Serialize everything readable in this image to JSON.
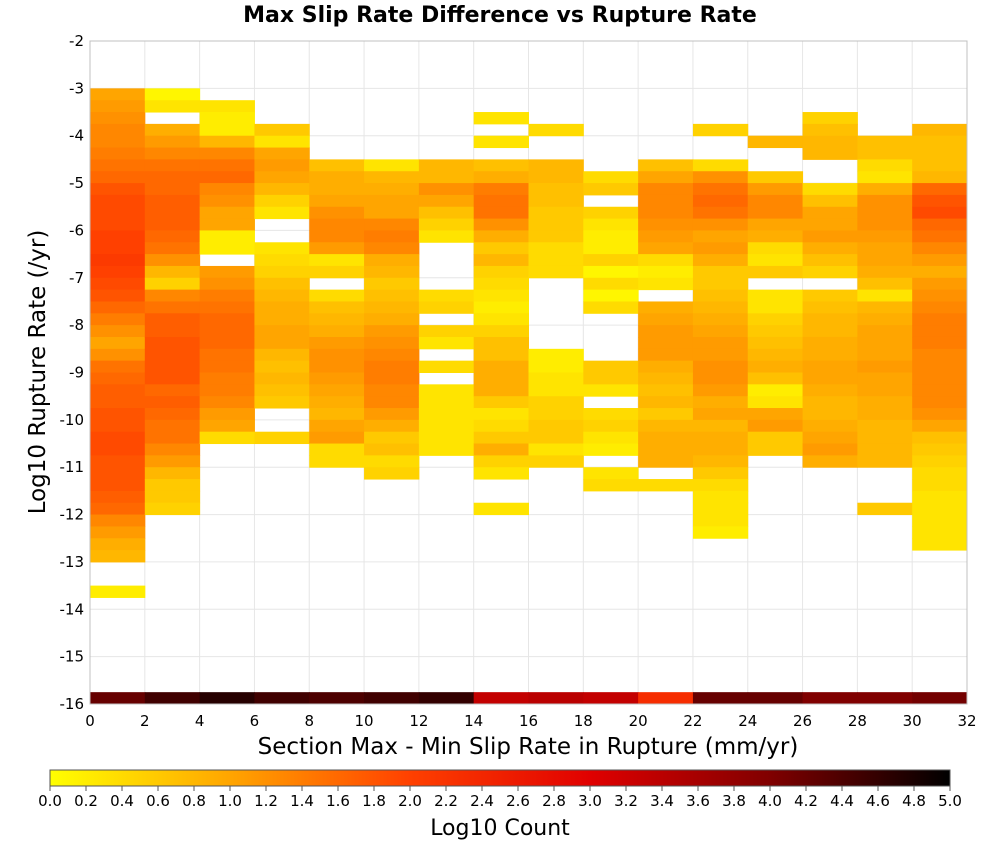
{
  "chart_data": {
    "type": "heatmap",
    "title": "Max Slip Rate Difference vs Rupture Rate",
    "xlabel": "Section Max - Min Slip Rate in Rupture (mm/yr)",
    "ylabel": "Log10 Rupture Rate (/yr)",
    "xlim": [
      0,
      32
    ],
    "ylim": [
      -16,
      -2
    ],
    "x_ticks": [
      0,
      2,
      4,
      6,
      8,
      10,
      12,
      14,
      16,
      18,
      20,
      22,
      24,
      26,
      28,
      30,
      32
    ],
    "y_ticks": [
      -2,
      -3,
      -4,
      -5,
      -6,
      -7,
      -8,
      -9,
      -10,
      -11,
      -12,
      -13,
      -14,
      -15,
      -16
    ],
    "x_bin_width": 2,
    "y_bin_height": 0.25,
    "grid": true,
    "colorbar": {
      "label": "Log10 Count",
      "min": 0.0,
      "max": 5.0,
      "ticks": [
        "0.0",
        "0.2",
        "0.4",
        "0.6",
        "0.8",
        "1.0",
        "1.2",
        "1.4",
        "1.6",
        "1.8",
        "2.0",
        "2.2",
        "2.4",
        "2.6",
        "2.8",
        "3.0",
        "3.2",
        "3.4",
        "3.6",
        "3.8",
        "4.0",
        "4.2",
        "4.4",
        "4.6",
        "4.8",
        "5.0"
      ],
      "stops": [
        "#ffff00",
        "#ffa500",
        "#ff4000",
        "#e00000",
        "#800000",
        "#000000"
      ]
    },
    "columns": [
      {
        "x": 0,
        "start": -3.0,
        "values": [
          1.0,
          1.1,
          1.2,
          1.3,
          1.3,
          1.4,
          1.5,
          1.6,
          1.8,
          1.9,
          1.9,
          1.9,
          2.0,
          2.0,
          2.1,
          2.0,
          1.9,
          1.8,
          1.6,
          1.4,
          1.2,
          1.0,
          1.2,
          1.5,
          1.6,
          1.7,
          1.7,
          1.8,
          1.8,
          1.9,
          1.9,
          1.8,
          1.8,
          1.8,
          1.7,
          1.6,
          1.3,
          1.1,
          0.9,
          0.8,
          null,
          null,
          0.2
        ]
      },
      {
        "x": 2,
        "start": -3.0,
        "values": [
          0.1,
          0.3,
          null,
          0.9,
          1.1,
          1.3,
          1.5,
          1.6,
          1.6,
          1.7,
          1.7,
          1.7,
          1.6,
          1.5,
          1.2,
          0.8,
          0.5,
          1.3,
          1.5,
          1.7,
          1.7,
          1.8,
          1.8,
          1.8,
          1.8,
          1.6,
          1.7,
          1.6,
          1.5,
          1.5,
          1.3,
          1.1,
          0.8,
          0.6,
          0.6,
          0.5
        ]
      },
      {
        "x": 4,
        "start": -3.25,
        "values": [
          0.3,
          0.2,
          0.2,
          0.8,
          1.3,
          1.5,
          1.6,
          1.3,
          1.2,
          1.0,
          1.0,
          0.2,
          0.2,
          null,
          1.1,
          1.2,
          1.4,
          1.5,
          1.6,
          1.6,
          1.6,
          1.5,
          1.5,
          1.4,
          1.4,
          1.3,
          1.1,
          1.0,
          0.4
        ]
      },
      {
        "x": 6,
        "start": -3.75,
        "values": [
          0.6,
          0.3,
          1.0,
          1.1,
          1.0,
          0.8,
          0.5,
          0.3,
          null,
          null,
          0.3,
          0.4,
          0.5,
          0.7,
          0.8,
          0.9,
          0.9,
          1.0,
          1.0,
          0.8,
          0.7,
          0.8,
          0.7,
          0.6,
          null,
          null,
          0.5
        ]
      },
      {
        "x": 8,
        "start": -4.5,
        "values": [
          0.7,
          0.9,
          0.9,
          1.0,
          1.2,
          1.3,
          1.3,
          1.1,
          0.3,
          0.5,
          null,
          0.4,
          0.7,
          0.8,
          0.9,
          1.1,
          1.2,
          1.2,
          1.1,
          1.0,
          0.9,
          0.8,
          1.0,
          1.1,
          0.4,
          0.4
        ]
      },
      {
        "x": 10,
        "start": -4.5,
        "values": [
          0.3,
          0.8,
          0.9,
          1.0,
          1.0,
          1.3,
          1.4,
          1.3,
          0.9,
          0.8,
          0.6,
          0.7,
          0.8,
          0.9,
          1.1,
          1.2,
          1.3,
          1.4,
          1.4,
          1.3,
          1.3,
          1.1,
          0.9,
          0.6,
          0.7,
          0.4,
          0.5
        ]
      },
      {
        "x": 12,
        "start": -4.5,
        "values": [
          0.8,
          0.8,
          1.2,
          1.0,
          0.7,
          0.5,
          0.3,
          null,
          null,
          null,
          null,
          0.4,
          0.5,
          null,
          0.5,
          0.3,
          null,
          0.4,
          null,
          0.3,
          0.3,
          0.3,
          0.3,
          0.3,
          0.3
        ]
      },
      {
        "x": 14,
        "start": -3.5,
        "values": [
          0.3,
          null,
          0.3,
          null,
          0.7,
          0.9,
          1.4,
          1.5,
          1.5,
          1.2,
          0.9,
          0.6,
          0.8,
          0.5,
          0.4,
          0.3,
          0.2,
          0.3,
          0.5,
          0.7,
          0.7,
          0.9,
          0.9,
          0.9,
          0.6,
          0.3,
          0.4,
          0.6,
          0.9,
          0.5,
          0.3,
          null,
          null,
          0.3
        ]
      },
      {
        "x": 16,
        "start": -3.75,
        "values": [
          0.4,
          null,
          null,
          0.8,
          0.8,
          0.7,
          0.7,
          0.6,
          0.6,
          0.6,
          0.4,
          0.4,
          0.4,
          null,
          null,
          null,
          null,
          null,
          null,
          0.2,
          0.2,
          0.3,
          0.3,
          0.5,
          0.5,
          0.6,
          0.6,
          0.3,
          0.5
        ]
      },
      {
        "x": 18,
        "start": -4.75,
        "values": [
          0.4,
          0.6,
          null,
          0.5,
          0.3,
          0.2,
          0.2,
          0.5,
          0.1,
          0.4,
          0.1,
          0.4,
          null,
          null,
          null,
          null,
          0.6,
          0.6,
          0.3,
          null,
          0.4,
          0.5,
          0.3,
          0.2,
          null,
          0.3,
          0.4
        ]
      },
      {
        "x": 20,
        "start": -4.5,
        "values": [
          0.7,
          1.0,
          1.3,
          1.3,
          1.3,
          1.2,
          1.1,
          1.0,
          0.4,
          0.2,
          0.3,
          null,
          0.9,
          1.0,
          1.1,
          1.1,
          1.1,
          0.9,
          0.8,
          0.7,
          0.8,
          0.6,
          0.8,
          0.9,
          0.9,
          0.9,
          null,
          0.4
        ]
      },
      {
        "x": 22,
        "start": -3.75,
        "values": [
          0.5,
          null,
          null,
          0.4,
          1.2,
          1.5,
          1.6,
          1.5,
          1.2,
          1.0,
          1.1,
          0.9,
          0.6,
          0.6,
          0.7,
          0.8,
          0.9,
          1.0,
          1.1,
          1.1,
          1.2,
          1.2,
          1.1,
          0.9,
          1.0,
          0.8,
          0.9,
          0.9,
          0.8,
          0.6,
          0.4,
          0.3,
          0.3,
          0.3,
          0.2
        ]
      },
      {
        "x": 24,
        "start": -4.0,
        "values": [
          0.8,
          null,
          null,
          0.6,
          1.1,
          1.3,
          1.3,
          1.0,
          0.9,
          0.4,
          0.3,
          0.6,
          null,
          0.3,
          0.3,
          0.5,
          0.6,
          0.7,
          0.8,
          0.9,
          0.7,
          0.2,
          0.3,
          1.0,
          1.1,
          0.6,
          0.6
        ]
      },
      {
        "x": 26,
        "start": -3.5,
        "values": [
          0.5,
          0.7,
          0.8,
          0.8,
          null,
          null,
          0.4,
          0.7,
          1.0,
          1.0,
          1.1,
          0.9,
          0.7,
          0.5,
          null,
          0.6,
          0.7,
          0.8,
          0.8,
          0.9,
          0.9,
          1.0,
          1.0,
          0.9,
          0.8,
          0.8,
          0.9,
          1.0,
          1.1,
          0.9
        ]
      },
      {
        "x": 28,
        "start": -4.0,
        "values": [
          0.7,
          0.7,
          0.4,
          0.3,
          0.9,
          1.2,
          1.2,
          1.2,
          1.1,
          1.0,
          1.0,
          0.9,
          0.7,
          0.3,
          0.8,
          0.9,
          1.0,
          1.0,
          1.0,
          1.1,
          1.0,
          1.0,
          0.9,
          0.9,
          0.8,
          0.8,
          0.8,
          0.8,
          null,
          null,
          null,
          0.6
        ]
      },
      {
        "x": 30,
        "start": -3.75,
        "values": [
          0.8,
          0.7,
          0.7,
          0.7,
          0.8,
          1.6,
          1.8,
          1.9,
          1.6,
          1.5,
          1.3,
          1.1,
          0.9,
          1.1,
          1.2,
          1.3,
          1.4,
          1.4,
          1.4,
          1.3,
          1.3,
          1.3,
          1.3,
          1.3,
          1.2,
          1.0,
          0.7,
          0.6,
          0.5,
          0.4,
          0.4,
          0.3,
          0.3,
          0.3,
          0.3,
          0.3
        ]
      }
    ],
    "bottom_row": {
      "y": -16,
      "values": [
        4.2,
        4.5,
        4.7,
        4.5,
        4.4,
        4.5,
        4.6,
        3.3,
        3.4,
        3.3,
        2.3,
        4.2,
        4.2,
        4.0,
        4.0,
        4.1
      ]
    }
  }
}
